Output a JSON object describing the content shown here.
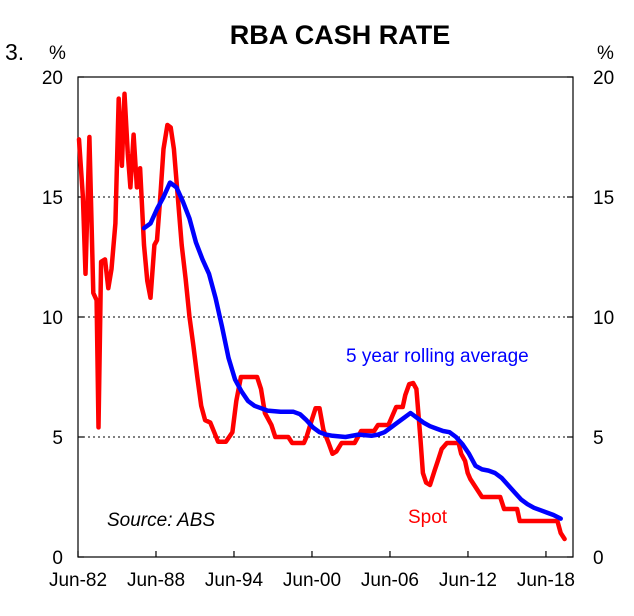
{
  "chart_data": {
    "type": "line",
    "title": "RBA CASH RATE",
    "chart_number": "3.",
    "ylabel_left": "%",
    "ylabel_right": "%",
    "ylim": [
      0,
      20
    ],
    "yticks": [
      0,
      5,
      10,
      15,
      20
    ],
    "xlim": [
      1982.42,
      2020.5
    ],
    "xticks": [
      {
        "label": "Jun-82",
        "value": 1982.42
      },
      {
        "label": "Jun-88",
        "value": 1988.42
      },
      {
        "label": "Jun-94",
        "value": 1994.42
      },
      {
        "label": "Jun-00",
        "value": 2000.42
      },
      {
        "label": "Jun-06",
        "value": 2006.42
      },
      {
        "label": "Jun-12",
        "value": 2012.42
      },
      {
        "label": "Jun-18",
        "value": 2018.42
      }
    ],
    "grid": true,
    "source": "Source: ABS",
    "colors": {
      "spot": "#ff0000",
      "average": "#0000ff",
      "grid": "#000000"
    },
    "series": [
      {
        "name": "Spot",
        "color": "#ff0000",
        "points": [
          [
            1982.5,
            17.4
          ],
          [
            1982.8,
            15.0
          ],
          [
            1983.0,
            11.8
          ],
          [
            1983.3,
            17.5
          ],
          [
            1983.6,
            11.0
          ],
          [
            1983.85,
            10.7
          ],
          [
            1984.0,
            5.4
          ],
          [
            1984.2,
            12.3
          ],
          [
            1984.5,
            12.4
          ],
          [
            1984.75,
            11.2
          ],
          [
            1985.0,
            12.0
          ],
          [
            1985.3,
            13.9
          ],
          [
            1985.55,
            19.1
          ],
          [
            1985.8,
            16.3
          ],
          [
            1986.0,
            19.3
          ],
          [
            1986.25,
            16.8
          ],
          [
            1986.45,
            15.4
          ],
          [
            1986.7,
            17.6
          ],
          [
            1986.95,
            15.4
          ],
          [
            1987.2,
            16.2
          ],
          [
            1987.5,
            13.0
          ],
          [
            1987.75,
            11.5
          ],
          [
            1988.0,
            10.8
          ],
          [
            1988.3,
            13.0
          ],
          [
            1988.5,
            13.2
          ],
          [
            1988.75,
            15.0
          ],
          [
            1989.0,
            17.0
          ],
          [
            1989.3,
            18.0
          ],
          [
            1989.55,
            17.9
          ],
          [
            1989.8,
            17.0
          ],
          [
            1990.1,
            15.0
          ],
          [
            1990.4,
            13.0
          ],
          [
            1990.7,
            11.6
          ],
          [
            1991.0,
            10.0
          ],
          [
            1991.3,
            8.8
          ],
          [
            1991.6,
            7.5
          ],
          [
            1991.9,
            6.3
          ],
          [
            1992.2,
            5.7
          ],
          [
            1992.6,
            5.6
          ],
          [
            1992.9,
            5.2
          ],
          [
            1993.2,
            4.8
          ],
          [
            1993.8,
            4.8
          ],
          [
            1994.3,
            5.2
          ],
          [
            1994.6,
            6.5
          ],
          [
            1994.95,
            7.5
          ],
          [
            1995.5,
            7.5
          ],
          [
            1996.2,
            7.5
          ],
          [
            1996.5,
            7.0
          ],
          [
            1996.8,
            6.0
          ],
          [
            1997.3,
            5.5
          ],
          [
            1997.6,
            5.0
          ],
          [
            1998.0,
            5.0
          ],
          [
            1998.6,
            5.0
          ],
          [
            1998.9,
            4.75
          ],
          [
            1999.8,
            4.75
          ],
          [
            2000.0,
            5.0
          ],
          [
            2000.4,
            5.7
          ],
          [
            2000.7,
            6.2
          ],
          [
            2001.0,
            6.2
          ],
          [
            2001.3,
            5.3
          ],
          [
            2001.7,
            4.75
          ],
          [
            2002.0,
            4.3
          ],
          [
            2002.3,
            4.4
          ],
          [
            2002.7,
            4.75
          ],
          [
            2003.7,
            4.75
          ],
          [
            2003.95,
            5.0
          ],
          [
            2004.2,
            5.25
          ],
          [
            2005.2,
            5.25
          ],
          [
            2005.5,
            5.5
          ],
          [
            2006.3,
            5.5
          ],
          [
            2006.5,
            5.75
          ],
          [
            2006.9,
            6.25
          ],
          [
            2007.4,
            6.25
          ],
          [
            2007.6,
            6.75
          ],
          [
            2007.9,
            7.2
          ],
          [
            2008.2,
            7.25
          ],
          [
            2008.45,
            7.0
          ],
          [
            2008.75,
            5.0
          ],
          [
            2008.95,
            3.5
          ],
          [
            2009.2,
            3.1
          ],
          [
            2009.5,
            3.0
          ],
          [
            2009.85,
            3.6
          ],
          [
            2010.1,
            4.0
          ],
          [
            2010.4,
            4.5
          ],
          [
            2010.8,
            4.75
          ],
          [
            2011.7,
            4.75
          ],
          [
            2011.9,
            4.3
          ],
          [
            2012.2,
            4.0
          ],
          [
            2012.4,
            3.5
          ],
          [
            2012.6,
            3.25
          ],
          [
            2012.9,
            3.0
          ],
          [
            2013.2,
            2.75
          ],
          [
            2013.5,
            2.5
          ],
          [
            2014.9,
            2.5
          ],
          [
            2015.2,
            2.0
          ],
          [
            2016.2,
            2.0
          ],
          [
            2016.4,
            1.5
          ],
          [
            2019.3,
            1.5
          ],
          [
            2019.55,
            1.0
          ],
          [
            2019.85,
            0.75
          ]
        ]
      },
      {
        "name": "5 year rolling average",
        "color": "#0000ff",
        "points": [
          [
            1987.5,
            13.7
          ],
          [
            1988.0,
            13.9
          ],
          [
            1988.5,
            14.5
          ],
          [
            1989.0,
            15.0
          ],
          [
            1989.5,
            15.6
          ],
          [
            1990.0,
            15.4
          ],
          [
            1990.5,
            14.8
          ],
          [
            1991.0,
            14.1
          ],
          [
            1991.5,
            13.1
          ],
          [
            1992.0,
            12.4
          ],
          [
            1992.5,
            11.8
          ],
          [
            1993.0,
            10.8
          ],
          [
            1993.5,
            9.6
          ],
          [
            1994.0,
            8.3
          ],
          [
            1994.5,
            7.4
          ],
          [
            1995.0,
            6.9
          ],
          [
            1995.5,
            6.5
          ],
          [
            1996.0,
            6.3
          ],
          [
            1996.5,
            6.2
          ],
          [
            1997.0,
            6.1
          ],
          [
            1998.0,
            6.05
          ],
          [
            1999.0,
            6.05
          ],
          [
            1999.5,
            5.95
          ],
          [
            2000.0,
            5.7
          ],
          [
            2000.5,
            5.4
          ],
          [
            2001.0,
            5.2
          ],
          [
            2001.5,
            5.1
          ],
          [
            2002.0,
            5.05
          ],
          [
            2003.0,
            5.0
          ],
          [
            2004.0,
            5.1
          ],
          [
            2005.0,
            5.05
          ],
          [
            2005.5,
            5.1
          ],
          [
            2006.0,
            5.2
          ],
          [
            2006.5,
            5.4
          ],
          [
            2007.0,
            5.6
          ],
          [
            2007.5,
            5.8
          ],
          [
            2008.0,
            6.0
          ],
          [
            2008.5,
            5.8
          ],
          [
            2009.0,
            5.6
          ],
          [
            2009.5,
            5.45
          ],
          [
            2010.0,
            5.35
          ],
          [
            2010.5,
            5.25
          ],
          [
            2011.0,
            5.2
          ],
          [
            2011.5,
            5.0
          ],
          [
            2012.0,
            4.7
          ],
          [
            2012.5,
            4.3
          ],
          [
            2013.0,
            3.8
          ],
          [
            2013.5,
            3.65
          ],
          [
            2014.0,
            3.6
          ],
          [
            2014.5,
            3.5
          ],
          [
            2015.0,
            3.3
          ],
          [
            2015.5,
            3.0
          ],
          [
            2016.0,
            2.7
          ],
          [
            2016.5,
            2.4
          ],
          [
            2017.0,
            2.2
          ],
          [
            2017.5,
            2.05
          ],
          [
            2018.0,
            1.95
          ],
          [
            2018.5,
            1.85
          ],
          [
            2019.0,
            1.75
          ],
          [
            2019.55,
            1.6
          ]
        ]
      }
    ],
    "annotations": [
      {
        "text": "5 year rolling average",
        "series": "5 year rolling average"
      },
      {
        "text": "Spot",
        "series": "Spot"
      }
    ]
  }
}
